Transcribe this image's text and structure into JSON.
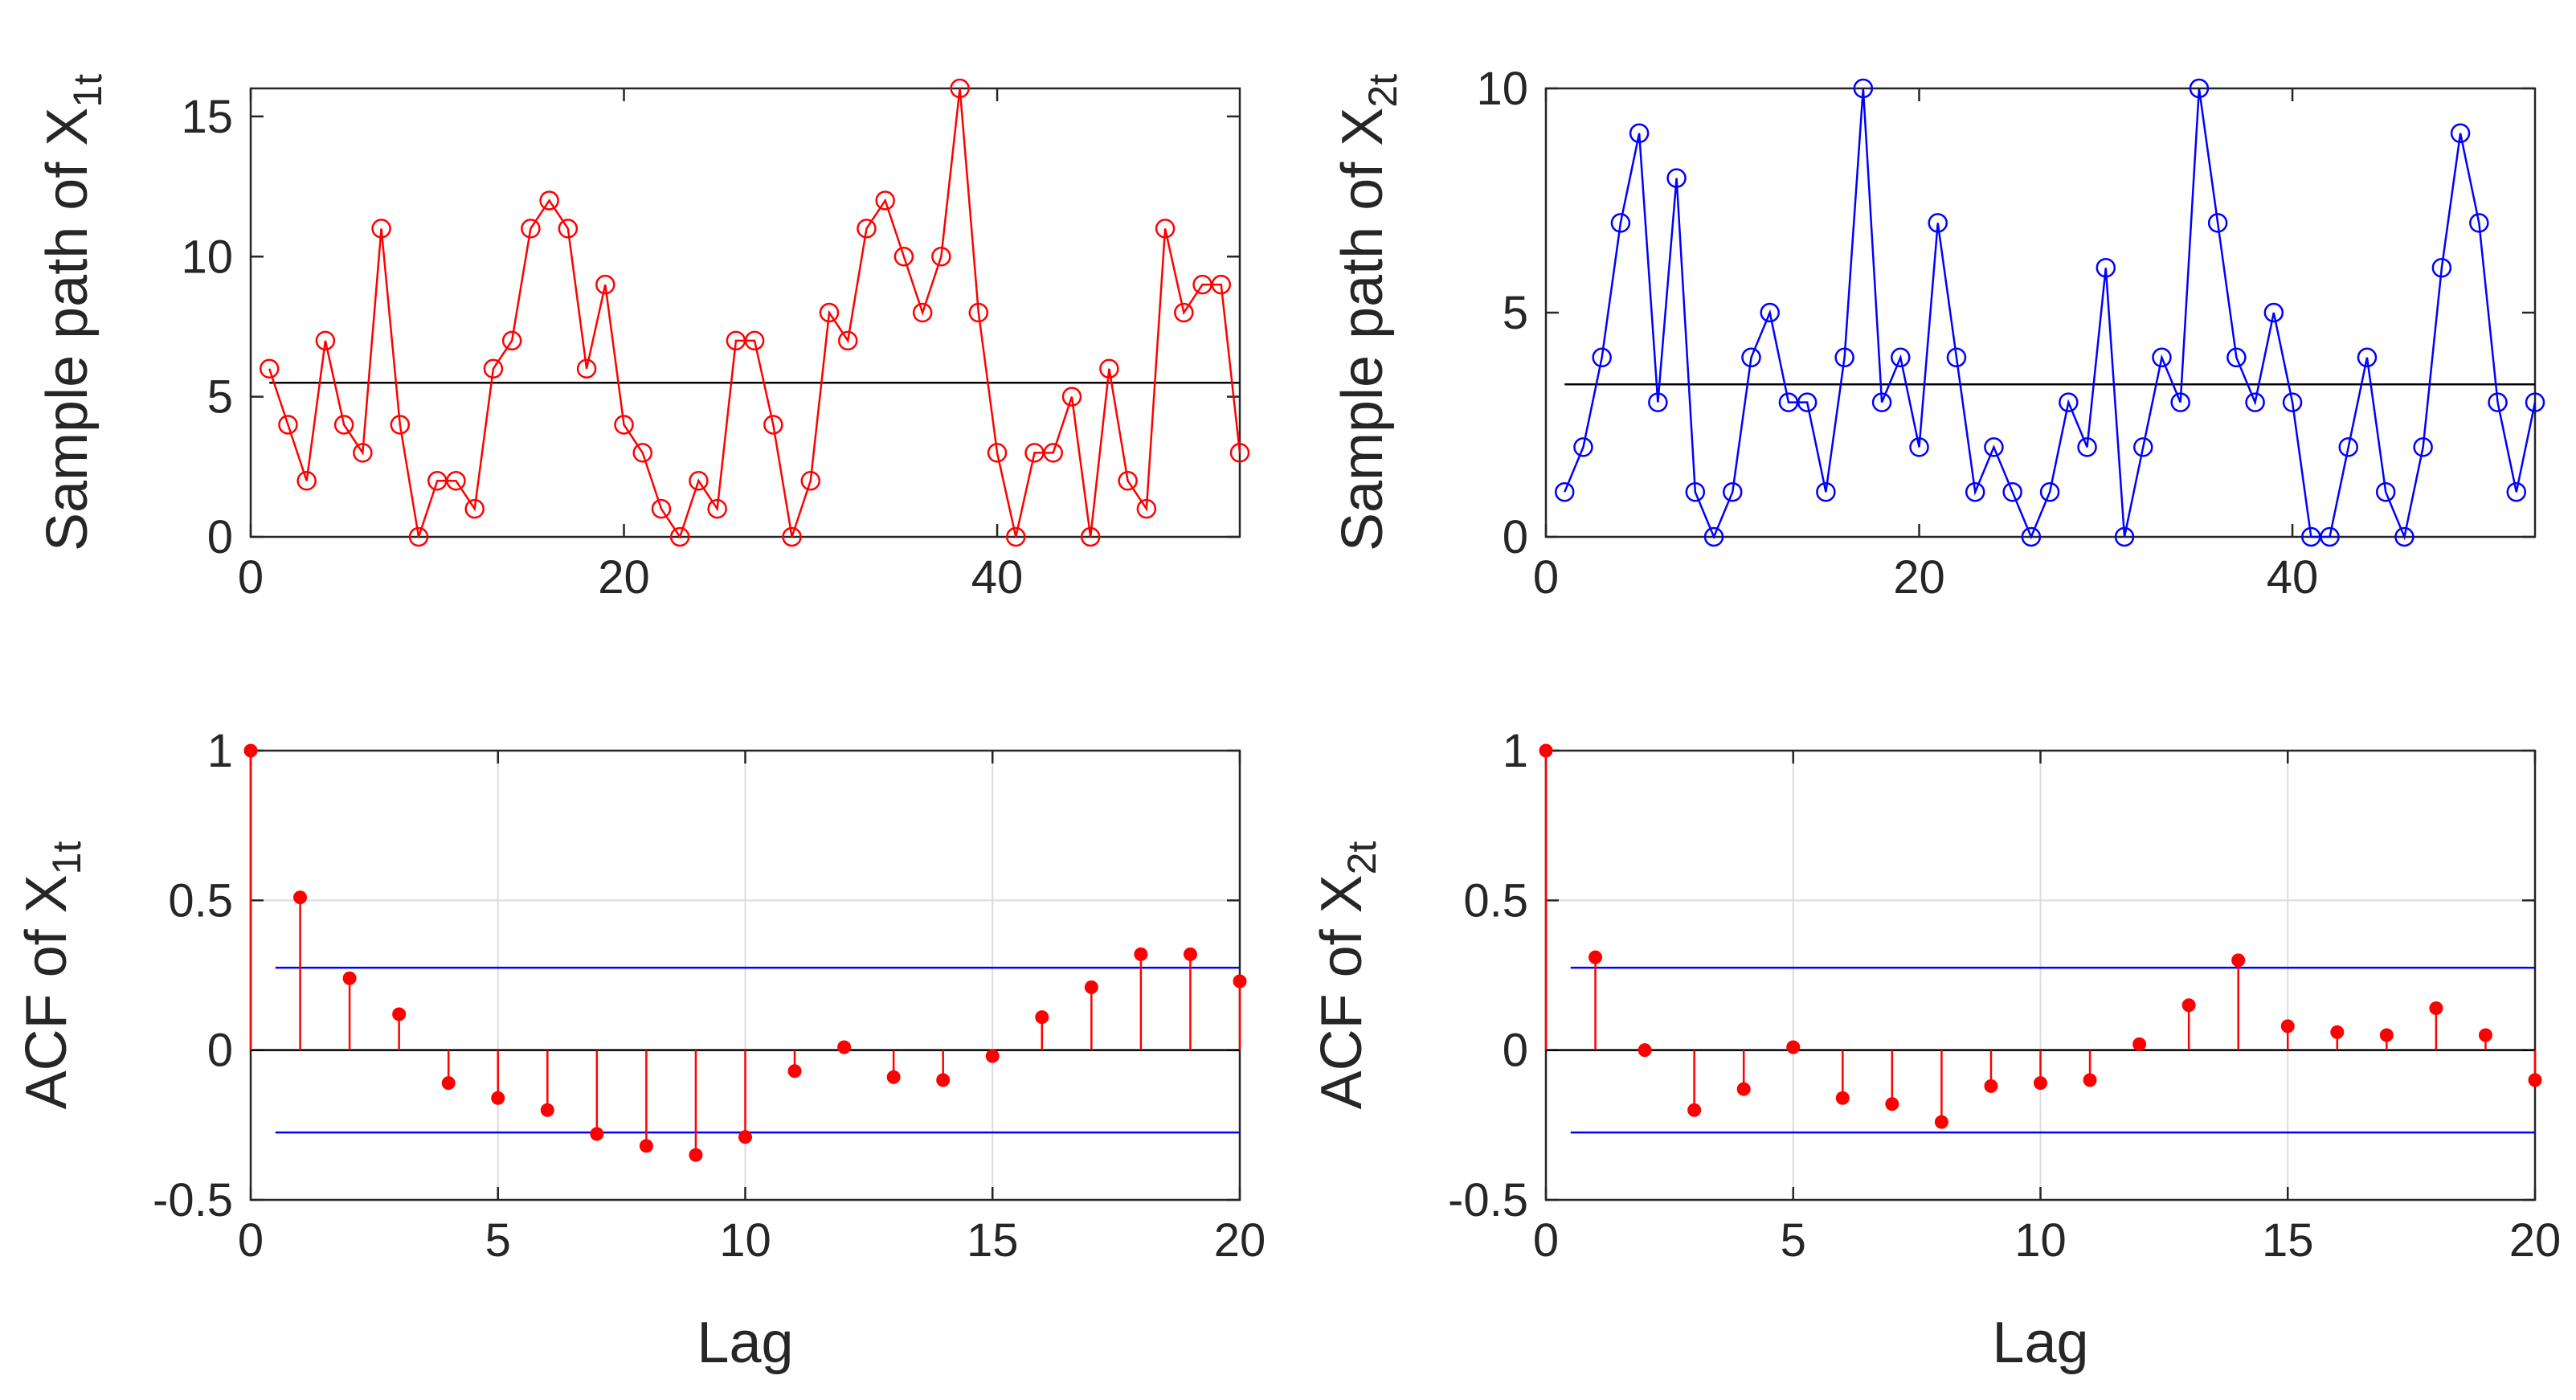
{
  "chart_data": [
    {
      "id": "x1-path",
      "type": "line",
      "ylabel_main": "Sample path of X",
      "ylabel_sub": "1t",
      "xlabel": "",
      "xlim": [
        0,
        53
      ],
      "ylim": [
        0,
        16
      ],
      "xticks": [
        0,
        20,
        40
      ],
      "yticks": [
        0,
        5,
        10,
        15
      ],
      "grid": false,
      "color": "#ff0000",
      "mean_line": 5.5,
      "mean_color": "#000000",
      "x": [
        1,
        2,
        3,
        4,
        5,
        6,
        7,
        8,
        9,
        10,
        11,
        12,
        13,
        14,
        15,
        16,
        17,
        18,
        19,
        20,
        21,
        22,
        23,
        24,
        25,
        26,
        27,
        28,
        29,
        30,
        31,
        32,
        33,
        34,
        35,
        36,
        37,
        38,
        39,
        40,
        41,
        42,
        43,
        44,
        45,
        46,
        47,
        48,
        49,
        50,
        51,
        52,
        53
      ],
      "values": [
        6,
        4,
        2,
        7,
        4,
        3,
        11,
        4,
        0,
        2,
        2,
        1,
        6,
        7,
        11,
        12,
        11,
        6,
        9,
        4,
        3,
        1,
        0,
        2,
        1,
        7,
        7,
        4,
        0,
        2,
        8,
        7,
        11,
        12,
        10,
        8,
        10,
        16,
        8,
        3,
        0,
        3,
        3,
        5,
        0,
        6,
        2,
        1,
        11,
        8,
        9,
        9,
        3
      ]
    },
    {
      "id": "x2-path",
      "type": "line",
      "ylabel_main": "Sample path of X",
      "ylabel_sub": "2t",
      "xlabel": "",
      "xlim": [
        0,
        53
      ],
      "ylim": [
        0,
        10
      ],
      "xticks": [
        0,
        20,
        40
      ],
      "yticks": [
        0,
        5,
        10
      ],
      "grid": false,
      "color": "#0000ff",
      "mean_line": 3.4,
      "mean_color": "#000000",
      "x": [
        1,
        2,
        3,
        4,
        5,
        6,
        7,
        8,
        9,
        10,
        11,
        12,
        13,
        14,
        15,
        16,
        17,
        18,
        19,
        20,
        21,
        22,
        23,
        24,
        25,
        26,
        27,
        28,
        29,
        30,
        31,
        32,
        33,
        34,
        35,
        36,
        37,
        38,
        39,
        40,
        41,
        42,
        43,
        44,
        45,
        46,
        47,
        48,
        49,
        50,
        51,
        52,
        53
      ],
      "values": [
        1,
        2,
        4,
        7,
        9,
        3,
        8,
        1,
        0,
        1,
        4,
        5,
        3,
        3,
        1,
        4,
        10,
        3,
        4,
        2,
        7,
        4,
        1,
        2,
        1,
        0,
        1,
        3,
        2,
        6,
        0,
        2,
        4,
        3,
        10,
        7,
        4,
        3,
        5,
        3,
        0,
        0,
        2,
        4,
        1,
        0,
        2,
        6,
        9,
        7,
        3,
        1,
        3
      ]
    },
    {
      "id": "x1-acf",
      "type": "stem",
      "ylabel_main": "ACF of X",
      "ylabel_sub": "1t",
      "xlabel": "Lag",
      "xlim": [
        0,
        20
      ],
      "ylim": [
        -0.5,
        1
      ],
      "xticks": [
        0,
        5,
        10,
        15,
        20
      ],
      "yticks": [
        -0.5,
        0,
        0.5,
        1
      ],
      "ytick_labels": [
        "-0.5",
        "0",
        "0.5",
        "1"
      ],
      "grid": true,
      "color": "#ff0000",
      "bounds": [
        0.275,
        -0.275
      ],
      "bounds_color": "#0000ff",
      "lags": [
        0,
        1,
        2,
        3,
        4,
        5,
        6,
        7,
        8,
        9,
        10,
        11,
        12,
        13,
        14,
        15,
        16,
        17,
        18,
        19,
        20
      ],
      "values": [
        1.0,
        0.51,
        0.24,
        0.12,
        -0.11,
        -0.16,
        -0.2,
        -0.28,
        -0.32,
        -0.35,
        -0.29,
        -0.07,
        0.01,
        -0.09,
        -0.1,
        -0.02,
        0.11,
        0.21,
        0.32,
        0.32,
        0.23
      ]
    },
    {
      "id": "x2-acf",
      "type": "stem",
      "ylabel_main": "ACF of X",
      "ylabel_sub": "2t",
      "xlabel": "Lag",
      "xlim": [
        0,
        20
      ],
      "ylim": [
        -0.5,
        1
      ],
      "xticks": [
        0,
        5,
        10,
        15,
        20
      ],
      "yticks": [
        -0.5,
        0,
        0.5,
        1
      ],
      "ytick_labels": [
        "-0.5",
        "0",
        "0.5",
        "1"
      ],
      "grid": true,
      "color": "#ff0000",
      "bounds": [
        0.275,
        -0.275
      ],
      "bounds_color": "#0000ff",
      "lags": [
        0,
        1,
        2,
        3,
        4,
        5,
        6,
        7,
        8,
        9,
        10,
        11,
        12,
        13,
        14,
        15,
        16,
        17,
        18,
        19,
        20
      ],
      "values": [
        1.0,
        0.31,
        0.0,
        -0.2,
        -0.13,
        0.01,
        -0.16,
        -0.18,
        -0.24,
        -0.12,
        -0.11,
        -0.1,
        0.02,
        0.15,
        0.3,
        0.08,
        0.06,
        0.05,
        0.14,
        0.05,
        -0.1
      ]
    }
  ]
}
